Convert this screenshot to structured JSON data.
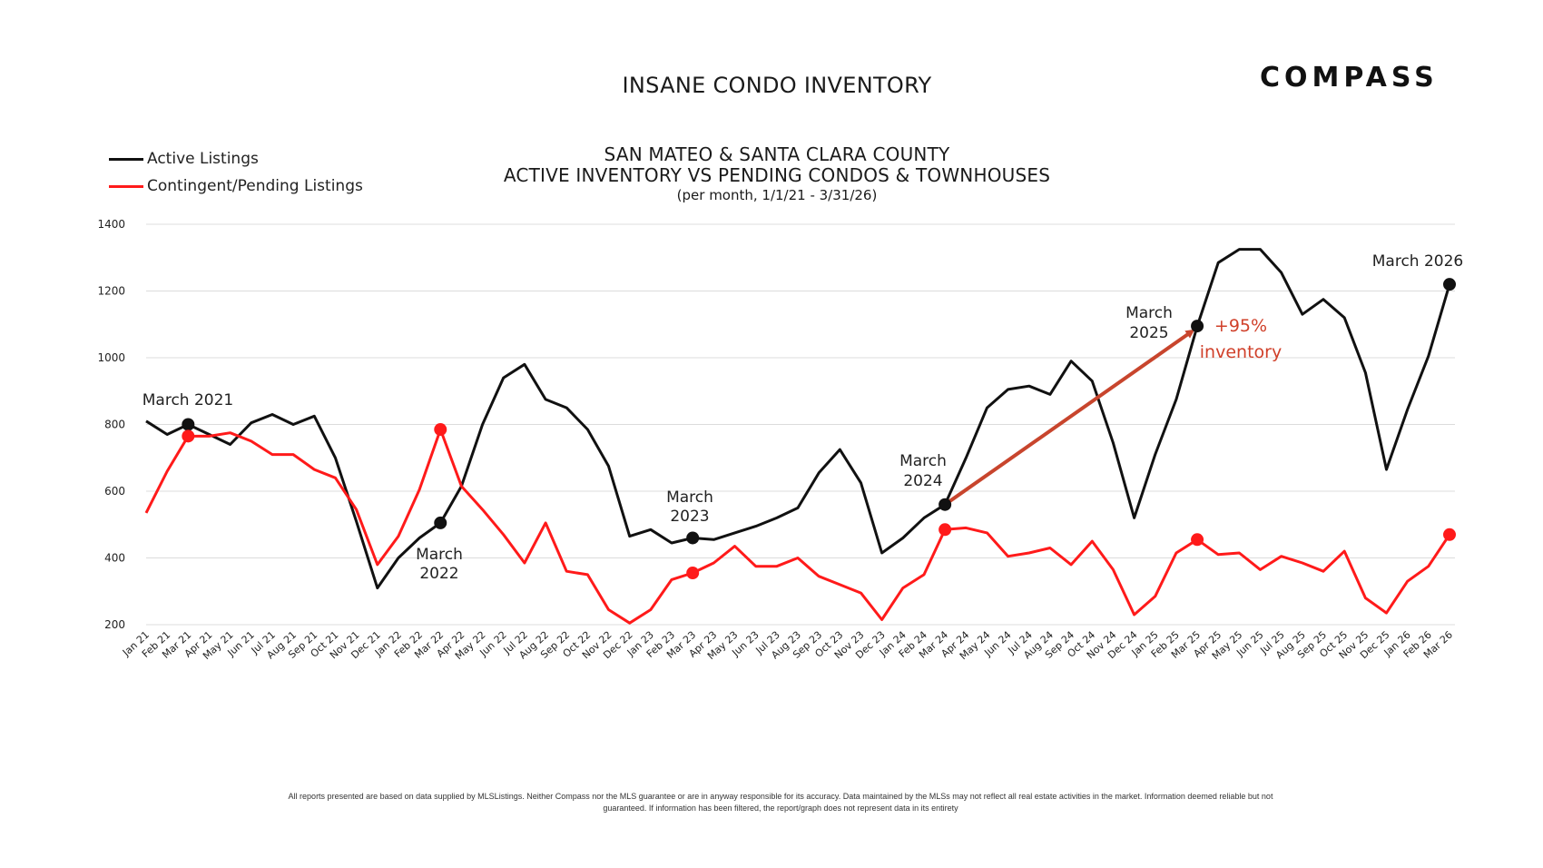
{
  "header": {
    "title": "INSANE CONDO INVENTORY",
    "logo_text": "COMPASS"
  },
  "chart_data": {
    "type": "line",
    "title": "SAN MATEO & SANTA CLARA COUNTY",
    "subtitle": "ACTIVE INVENTORY VS PENDING CONDOS & TOWNHOUSES",
    "subtitle2": "(per month, 1/1/21 - 3/31/26)",
    "xlabel": "",
    "ylabel": "",
    "ylim": [
      200,
      1400
    ],
    "yticks": [
      200,
      400,
      600,
      800,
      1000,
      1200,
      1400
    ],
    "grid": "horizontal",
    "legend_position": "top-left",
    "categories": [
      "Jan 21",
      "Feb 21",
      "Mar 21",
      "Apr 21",
      "May 21",
      "Jun 21",
      "Jul 21",
      "Aug 21",
      "Sep 21",
      "Oct 21",
      "Nov 21",
      "Dec 21",
      "Jan 22",
      "Feb 22",
      "Mar 22",
      "Apr 22",
      "May 22",
      "Jun 22",
      "Jul 22",
      "Aug 22",
      "Sep 22",
      "Oct 22",
      "Nov 22",
      "Dec 22",
      "Jan 23",
      "Feb 23",
      "Mar 23",
      "Apr 23",
      "May 23",
      "Jun 23",
      "Jul 23",
      "Aug 23",
      "Sep 23",
      "Oct 23",
      "Nov 23",
      "Dec 23",
      "Jan 24",
      "Feb 24",
      "Mar 24",
      "Apr 24",
      "May 24",
      "Jun 24",
      "Jul 24",
      "Aug 24",
      "Sep 24",
      "Oct 24",
      "Nov 24",
      "Dec 24",
      "Jan 25",
      "Feb 25",
      "Mar 25",
      "Apr 25",
      "May 25",
      "Jun 25",
      "Jul 25",
      "Aug 25",
      "Sep 25",
      "Oct 25",
      "Nov 25",
      "Dec 25",
      "Jan 26",
      "Feb 26",
      "Mar 26"
    ],
    "series": [
      {
        "name": "Active Listings",
        "color": "#111111",
        "values": [
          810,
          770,
          800,
          770,
          740,
          805,
          830,
          800,
          825,
          700,
          510,
          310,
          400,
          460,
          505,
          615,
          800,
          940,
          980,
          875,
          850,
          785,
          675,
          465,
          485,
          445,
          460,
          455,
          475,
          495,
          520,
          550,
          655,
          725,
          625,
          415,
          460,
          520,
          560,
          700,
          850,
          905,
          915,
          890,
          990,
          930,
          745,
          520,
          710,
          875,
          1095,
          1285,
          1325,
          1325,
          1255,
          1130,
          1175,
          1120,
          955,
          665,
          845,
          1005,
          1220
        ]
      },
      {
        "name": "Contingent/Pending Listings",
        "color": "#ff1a1a",
        "values": [
          535,
          660,
          765,
          765,
          775,
          750,
          710,
          710,
          665,
          640,
          545,
          380,
          465,
          605,
          785,
          615,
          545,
          470,
          385,
          505,
          360,
          350,
          245,
          205,
          245,
          335,
          355,
          385,
          435,
          375,
          375,
          400,
          345,
          320,
          295,
          215,
          310,
          350,
          485,
          490,
          475,
          405,
          415,
          430,
          380,
          450,
          365,
          230,
          285,
          415,
          455,
          410,
          415,
          365,
          405,
          385,
          360,
          420,
          280,
          235,
          330,
          375,
          470
        ]
      }
    ],
    "highlight_markers": [
      {
        "index": 2,
        "active_label": "March 2021",
        "pending_marker": true
      },
      {
        "index": 14,
        "active_label": "March 2022",
        "pending_marker": true
      },
      {
        "index": 26,
        "active_label": "March 2023",
        "pending_marker": true
      },
      {
        "index": 38,
        "active_label": "March 2024",
        "pending_marker": true
      },
      {
        "index": 50,
        "active_label": "March 2025",
        "pending_marker": true
      },
      {
        "index": 62,
        "active_label": "March 2026",
        "pending_marker": true
      }
    ],
    "annotations": [
      {
        "text": "March 2021"
      },
      {
        "text": "March 2022"
      },
      {
        "text": "March 2023"
      },
      {
        "text": "March 2024"
      },
      {
        "text": "March 2025"
      },
      {
        "text": "March 2026"
      },
      {
        "text": "+95%"
      },
      {
        "text": "inventory"
      }
    ],
    "arrow": {
      "from_index": 38,
      "to_index": 50,
      "series": "Active Listings",
      "color": "#c8452d",
      "label": "+95% inventory"
    }
  },
  "legend": [
    {
      "label": "Active Listings",
      "color": "#111111"
    },
    {
      "label": "Contingent/Pending Listings",
      "color": "#ff1a1a"
    }
  ],
  "footnote": {
    "line1": "All reports presented are based on data supplied by MLSListings. Neither Compass nor the MLS guarantee or are in anyway responsible for its accuracy. Data maintained by the MLSs may not reflect all real estate activities in the market. Information deemed reliable but not",
    "line2": "guaranteed. If information has been filtered, the report/graph does not represent data in its entirety"
  }
}
